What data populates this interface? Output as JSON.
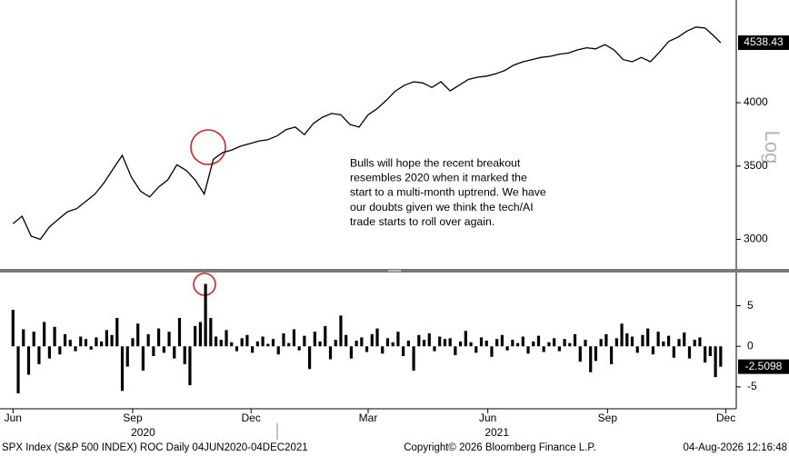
{
  "chart_data": [
    {
      "type": "line",
      "scale": "log",
      "x": [
        0,
        7,
        14,
        21,
        28,
        35,
        42,
        49,
        56,
        63,
        70,
        77,
        84,
        91,
        98,
        105,
        112,
        119,
        126,
        133,
        140,
        147,
        154,
        161,
        168,
        175,
        182,
        189,
        196,
        203,
        210,
        217,
        224,
        231,
        238,
        245,
        252,
        259,
        266,
        273,
        280,
        287,
        294,
        301,
        308,
        315,
        322,
        329,
        336,
        343,
        350,
        357,
        364,
        371,
        378,
        385,
        392,
        399,
        406,
        413,
        420,
        427,
        434,
        441,
        448,
        455,
        462,
        469,
        476,
        483,
        490,
        497,
        504,
        511,
        518,
        525,
        532,
        539,
        544
      ],
      "values": [
        3100,
        3150,
        3020,
        3000,
        3080,
        3130,
        3180,
        3200,
        3250,
        3300,
        3380,
        3480,
        3580,
        3420,
        3320,
        3280,
        3350,
        3400,
        3510,
        3470,
        3400,
        3300,
        3550,
        3600,
        3620,
        3650,
        3670,
        3690,
        3700,
        3730,
        3780,
        3800,
        3740,
        3830,
        3880,
        3910,
        3900,
        3820,
        3800,
        3900,
        3950,
        4020,
        4100,
        4150,
        4180,
        4170,
        4130,
        4180,
        4100,
        4150,
        4200,
        4220,
        4230,
        4250,
        4280,
        4330,
        4360,
        4380,
        4400,
        4410,
        4430,
        4440,
        4470,
        4490,
        4480,
        4520,
        4470,
        4380,
        4360,
        4400,
        4360,
        4450,
        4550,
        4590,
        4650,
        4690,
        4680,
        4600,
        4538.43
      ],
      "color": "#000000",
      "xlim": [
        -10,
        556
      ],
      "ylim": [
        2830,
        4946
      ],
      "yticks": [
        3000,
        3500,
        4000
      ],
      "y_axis_label": "Log",
      "annotation": [
        "Bulls will hope the recent breakout",
        "resembles 2020 when it marked the",
        "start to a multi-month uptrend. We have",
        "our doubts given we think the tech/AI",
        "trade starts to roll over again."
      ]
    },
    {
      "type": "bar",
      "x": [
        0,
        4,
        8,
        12,
        16,
        20,
        24,
        28,
        32,
        36,
        40,
        44,
        48,
        52,
        56,
        60,
        64,
        68,
        72,
        76,
        80,
        84,
        88,
        92,
        96,
        100,
        104,
        108,
        112,
        116,
        120,
        124,
        128,
        132,
        136,
        140,
        144,
        148,
        152,
        156,
        160,
        164,
        168,
        172,
        176,
        180,
        184,
        188,
        192,
        196,
        200,
        204,
        208,
        212,
        216,
        220,
        224,
        228,
        232,
        236,
        240,
        244,
        248,
        252,
        256,
        260,
        264,
        268,
        272,
        276,
        280,
        284,
        288,
        292,
        296,
        300,
        304,
        308,
        312,
        316,
        320,
        324,
        328,
        332,
        336,
        340,
        344,
        348,
        352,
        356,
        360,
        364,
        368,
        372,
        376,
        380,
        384,
        388,
        392,
        396,
        400,
        404,
        408,
        412,
        416,
        420,
        424,
        428,
        432,
        436,
        440,
        444,
        448,
        452,
        456,
        460,
        464,
        468,
        472,
        476,
        480,
        484,
        488,
        492,
        496,
        500,
        504,
        508,
        512,
        516,
        520,
        524,
        528,
        532,
        536,
        540,
        544
      ],
      "values": [
        4.5,
        -5.8,
        2.1,
        -3.5,
        1.8,
        -2.2,
        3.0,
        -1.5,
        2.4,
        -1.0,
        1.5,
        0.8,
        -0.6,
        1.2,
        0.9,
        -0.4,
        1.1,
        0.6,
        2.0,
        1.4,
        3.5,
        -5.5,
        -2.5,
        1.0,
        2.8,
        -3.0,
        1.5,
        -1.2,
        2.2,
        -0.8,
        1.8,
        -1.5,
        3.5,
        -2.2,
        -4.8,
        2.5,
        3.0,
        7.7,
        3.5,
        1.2,
        0.8,
        2.0,
        0.5,
        -0.6,
        1.0,
        1.4,
        -0.8,
        0.6,
        1.2,
        0.3,
        0.9,
        -1.0,
        1.6,
        0.4,
        2.1,
        -0.5,
        1.3,
        -2.8,
        1.8,
        0.6,
        2.5,
        -1.6,
        0.8,
        3.8,
        1.4,
        -1.5,
        0.7,
        1.1,
        -0.7,
        1.5,
        2.2,
        -0.9,
        1.0,
        0.5,
        1.8,
        -1.2,
        0.7,
        -3.0,
        1.4,
        0.8,
        1.6,
        -0.6,
        1.2,
        0.9,
        1.0,
        -1.1,
        0.6,
        1.9,
        0.5,
        -0.8,
        1.1,
        0.7,
        -1.3,
        0.9,
        1.4,
        -0.5,
        0.8,
        0.4,
        1.2,
        -0.9,
        0.6,
        1.3,
        -0.7,
        0.5,
        1.0,
        -0.6,
        0.9,
        0.4,
        1.5,
        -1.9,
        0.8,
        -3.2,
        -1.8,
        0.9,
        1.5,
        -2.2,
        1.0,
        2.8,
        1.6,
        1.2,
        -0.8,
        1.4,
        2.2,
        -1.0,
        1.8,
        0.6,
        1.3,
        -1.4,
        0.9,
        1.7,
        -1.5,
        0.8,
        1.1,
        -2.0,
        -1.2,
        -3.8,
        -2.5098
      ],
      "color": "#000000",
      "xlim": [
        -10,
        556
      ],
      "ylim": [
        -7.7,
        9.1
      ],
      "yticks": [
        -5,
        0,
        5
      ],
      "xticks": [
        {
          "value": 0,
          "label": "Jun"
        },
        {
          "value": 92,
          "label": "Sep"
        },
        {
          "value": 183,
          "label": "Dec"
        },
        {
          "value": 273,
          "label": "Mar"
        },
        {
          "value": 365,
          "label": "Jun"
        },
        {
          "value": 457,
          "label": "Sep"
        },
        {
          "value": 548,
          "label": "Dec"
        }
      ],
      "year_ticks": [
        {
          "value": 100,
          "label": "2020"
        },
        {
          "value": 372,
          "label": "2021"
        }
      ]
    }
  ],
  "footer": {
    "left": "SPX Index (S&P 500 INDEX) ROC Daily 04JUN2020-04DEC2021",
    "center": "Copyright© 2026 Bloomberg Finance L.P.",
    "right": "04-Aug-2026 12:16:48"
  }
}
